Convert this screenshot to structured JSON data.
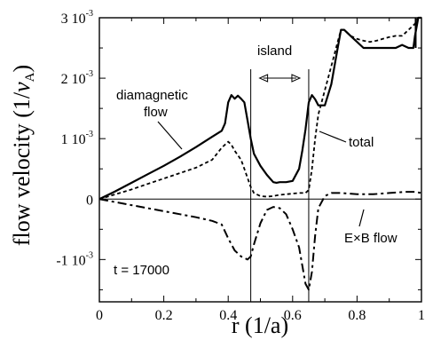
{
  "chart_data": {
    "type": "line",
    "xlabel": "r (1/a)",
    "ylabel": "flow velocity (1/",
    "ylabel_var": "v",
    "ylabel_sub": "A",
    "ylabel_close": ")",
    "xlim": [
      0,
      1
    ],
    "ylim": [
      -0.0017,
      0.003
    ],
    "x_ticks": [
      {
        "value": 0,
        "label": "0"
      },
      {
        "value": 0.2,
        "label": "0.2"
      },
      {
        "value": 0.4,
        "label": "0.4"
      },
      {
        "value": 0.6,
        "label": "0.6"
      },
      {
        "value": 0.8,
        "label": "0.8"
      },
      {
        "value": 1,
        "label": "1"
      }
    ],
    "y_ticks": [
      {
        "value": -0.001,
        "mant": "-1 10",
        "exp": "-3"
      },
      {
        "value": 0,
        "mant": "0",
        "exp": ""
      },
      {
        "value": 0.001,
        "mant": "1 10",
        "exp": "-3"
      },
      {
        "value": 0.002,
        "mant": "2 10",
        "exp": "-3"
      },
      {
        "value": 0.003,
        "mant": "3 10",
        "exp": "-3"
      }
    ],
    "grid": false,
    "island": {
      "x_start": 0.47,
      "x_end": 0.65,
      "label": "island"
    },
    "annotations": {
      "diamagnetic": [
        "diamagnetic",
        "flow"
      ],
      "total": "total",
      "exb": "E×B flow",
      "time": "t = 17000"
    },
    "series": [
      {
        "key": "diamagnetic",
        "style": "solid",
        "x": [
          0,
          0.05,
          0.1,
          0.15,
          0.2,
          0.25,
          0.3,
          0.35,
          0.38,
          0.39,
          0.4,
          0.41,
          0.42,
          0.43,
          0.44,
          0.45,
          0.46,
          0.47,
          0.48,
          0.5,
          0.52,
          0.54,
          0.55,
          0.56,
          0.58,
          0.6,
          0.62,
          0.63,
          0.64,
          0.65,
          0.66,
          0.67,
          0.68,
          0.7,
          0.72,
          0.74,
          0.75,
          0.76,
          0.78,
          0.8,
          0.82,
          0.84,
          0.86,
          0.88,
          0.9,
          0.92,
          0.94,
          0.96,
          0.975,
          0.98,
          0.99,
          1.0
        ],
        "y": [
          0,
          0.00013,
          0.00027,
          0.00041,
          0.00055,
          0.0007,
          0.00086,
          0.00103,
          0.00113,
          0.00125,
          0.0016,
          0.00172,
          0.00166,
          0.00171,
          0.00166,
          0.0016,
          0.0013,
          0.001,
          0.00075,
          0.00055,
          0.0004,
          0.00028,
          0.00027,
          0.00028,
          0.00028,
          0.0003,
          0.0005,
          0.0008,
          0.00115,
          0.0016,
          0.00172,
          0.00165,
          0.00155,
          0.00155,
          0.0019,
          0.0025,
          0.0028,
          0.0028,
          0.0027,
          0.0026,
          0.0025,
          0.0025,
          0.0025,
          0.0025,
          0.0025,
          0.0025,
          0.00255,
          0.0025,
          0.0025,
          0.0027,
          0.003,
          0.003
        ]
      },
      {
        "key": "total",
        "style": "dashed",
        "x": [
          0,
          0.05,
          0.1,
          0.15,
          0.2,
          0.25,
          0.3,
          0.35,
          0.38,
          0.4,
          0.41,
          0.42,
          0.44,
          0.45,
          0.46,
          0.47,
          0.48,
          0.5,
          0.52,
          0.54,
          0.56,
          0.58,
          0.6,
          0.62,
          0.64,
          0.65,
          0.66,
          0.67,
          0.68,
          0.7,
          0.72,
          0.74,
          0.75,
          0.76,
          0.78,
          0.8,
          0.82,
          0.84,
          0.86,
          0.88,
          0.9,
          0.92,
          0.94,
          0.96,
          0.98,
          0.99,
          1.0
        ],
        "y": [
          0,
          8e-05,
          0.00016,
          0.00025,
          0.00034,
          0.00043,
          0.00052,
          0.00065,
          0.00085,
          0.00095,
          0.0009,
          0.0008,
          0.00065,
          0.0005,
          0.00035,
          0.0002,
          0.0001,
          5e-05,
          4e-05,
          5e-05,
          7e-05,
          8e-05,
          9e-05,
          0.0001,
          0.0001,
          0.00015,
          0.0005,
          0.001,
          0.0014,
          0.0018,
          0.0022,
          0.0026,
          0.0028,
          0.0028,
          0.0027,
          0.00265,
          0.00262,
          0.0026,
          0.00262,
          0.00265,
          0.00268,
          0.0027,
          0.0027,
          0.0028,
          0.0029,
          0.003,
          0.003
        ]
      },
      {
        "key": "exb",
        "style": "dashdot",
        "x": [
          0,
          0.05,
          0.1,
          0.15,
          0.2,
          0.25,
          0.3,
          0.35,
          0.38,
          0.4,
          0.42,
          0.44,
          0.46,
          0.47,
          0.48,
          0.5,
          0.52,
          0.54,
          0.56,
          0.58,
          0.6,
          0.62,
          0.63,
          0.64,
          0.65,
          0.66,
          0.67,
          0.68,
          0.7,
          0.72,
          0.75,
          0.8,
          0.85,
          0.9,
          0.95,
          0.98,
          1.0
        ],
        "y": [
          0,
          -5e-05,
          -0.0001,
          -0.00015,
          -0.0002,
          -0.00025,
          -0.0003,
          -0.00036,
          -0.00042,
          -0.00065,
          -0.00085,
          -0.00095,
          -0.001,
          -0.00095,
          -0.00075,
          -0.0004,
          -0.00018,
          -0.00013,
          -0.00015,
          -0.00025,
          -0.0005,
          -0.0008,
          -0.0011,
          -0.0014,
          -0.0015,
          -0.0012,
          -0.0006,
          -0.00015,
          5e-05,
          0.0001,
          0.0001,
          8e-05,
          8e-05,
          0.0001,
          0.00012,
          0.00012,
          0.0001
        ]
      }
    ]
  }
}
